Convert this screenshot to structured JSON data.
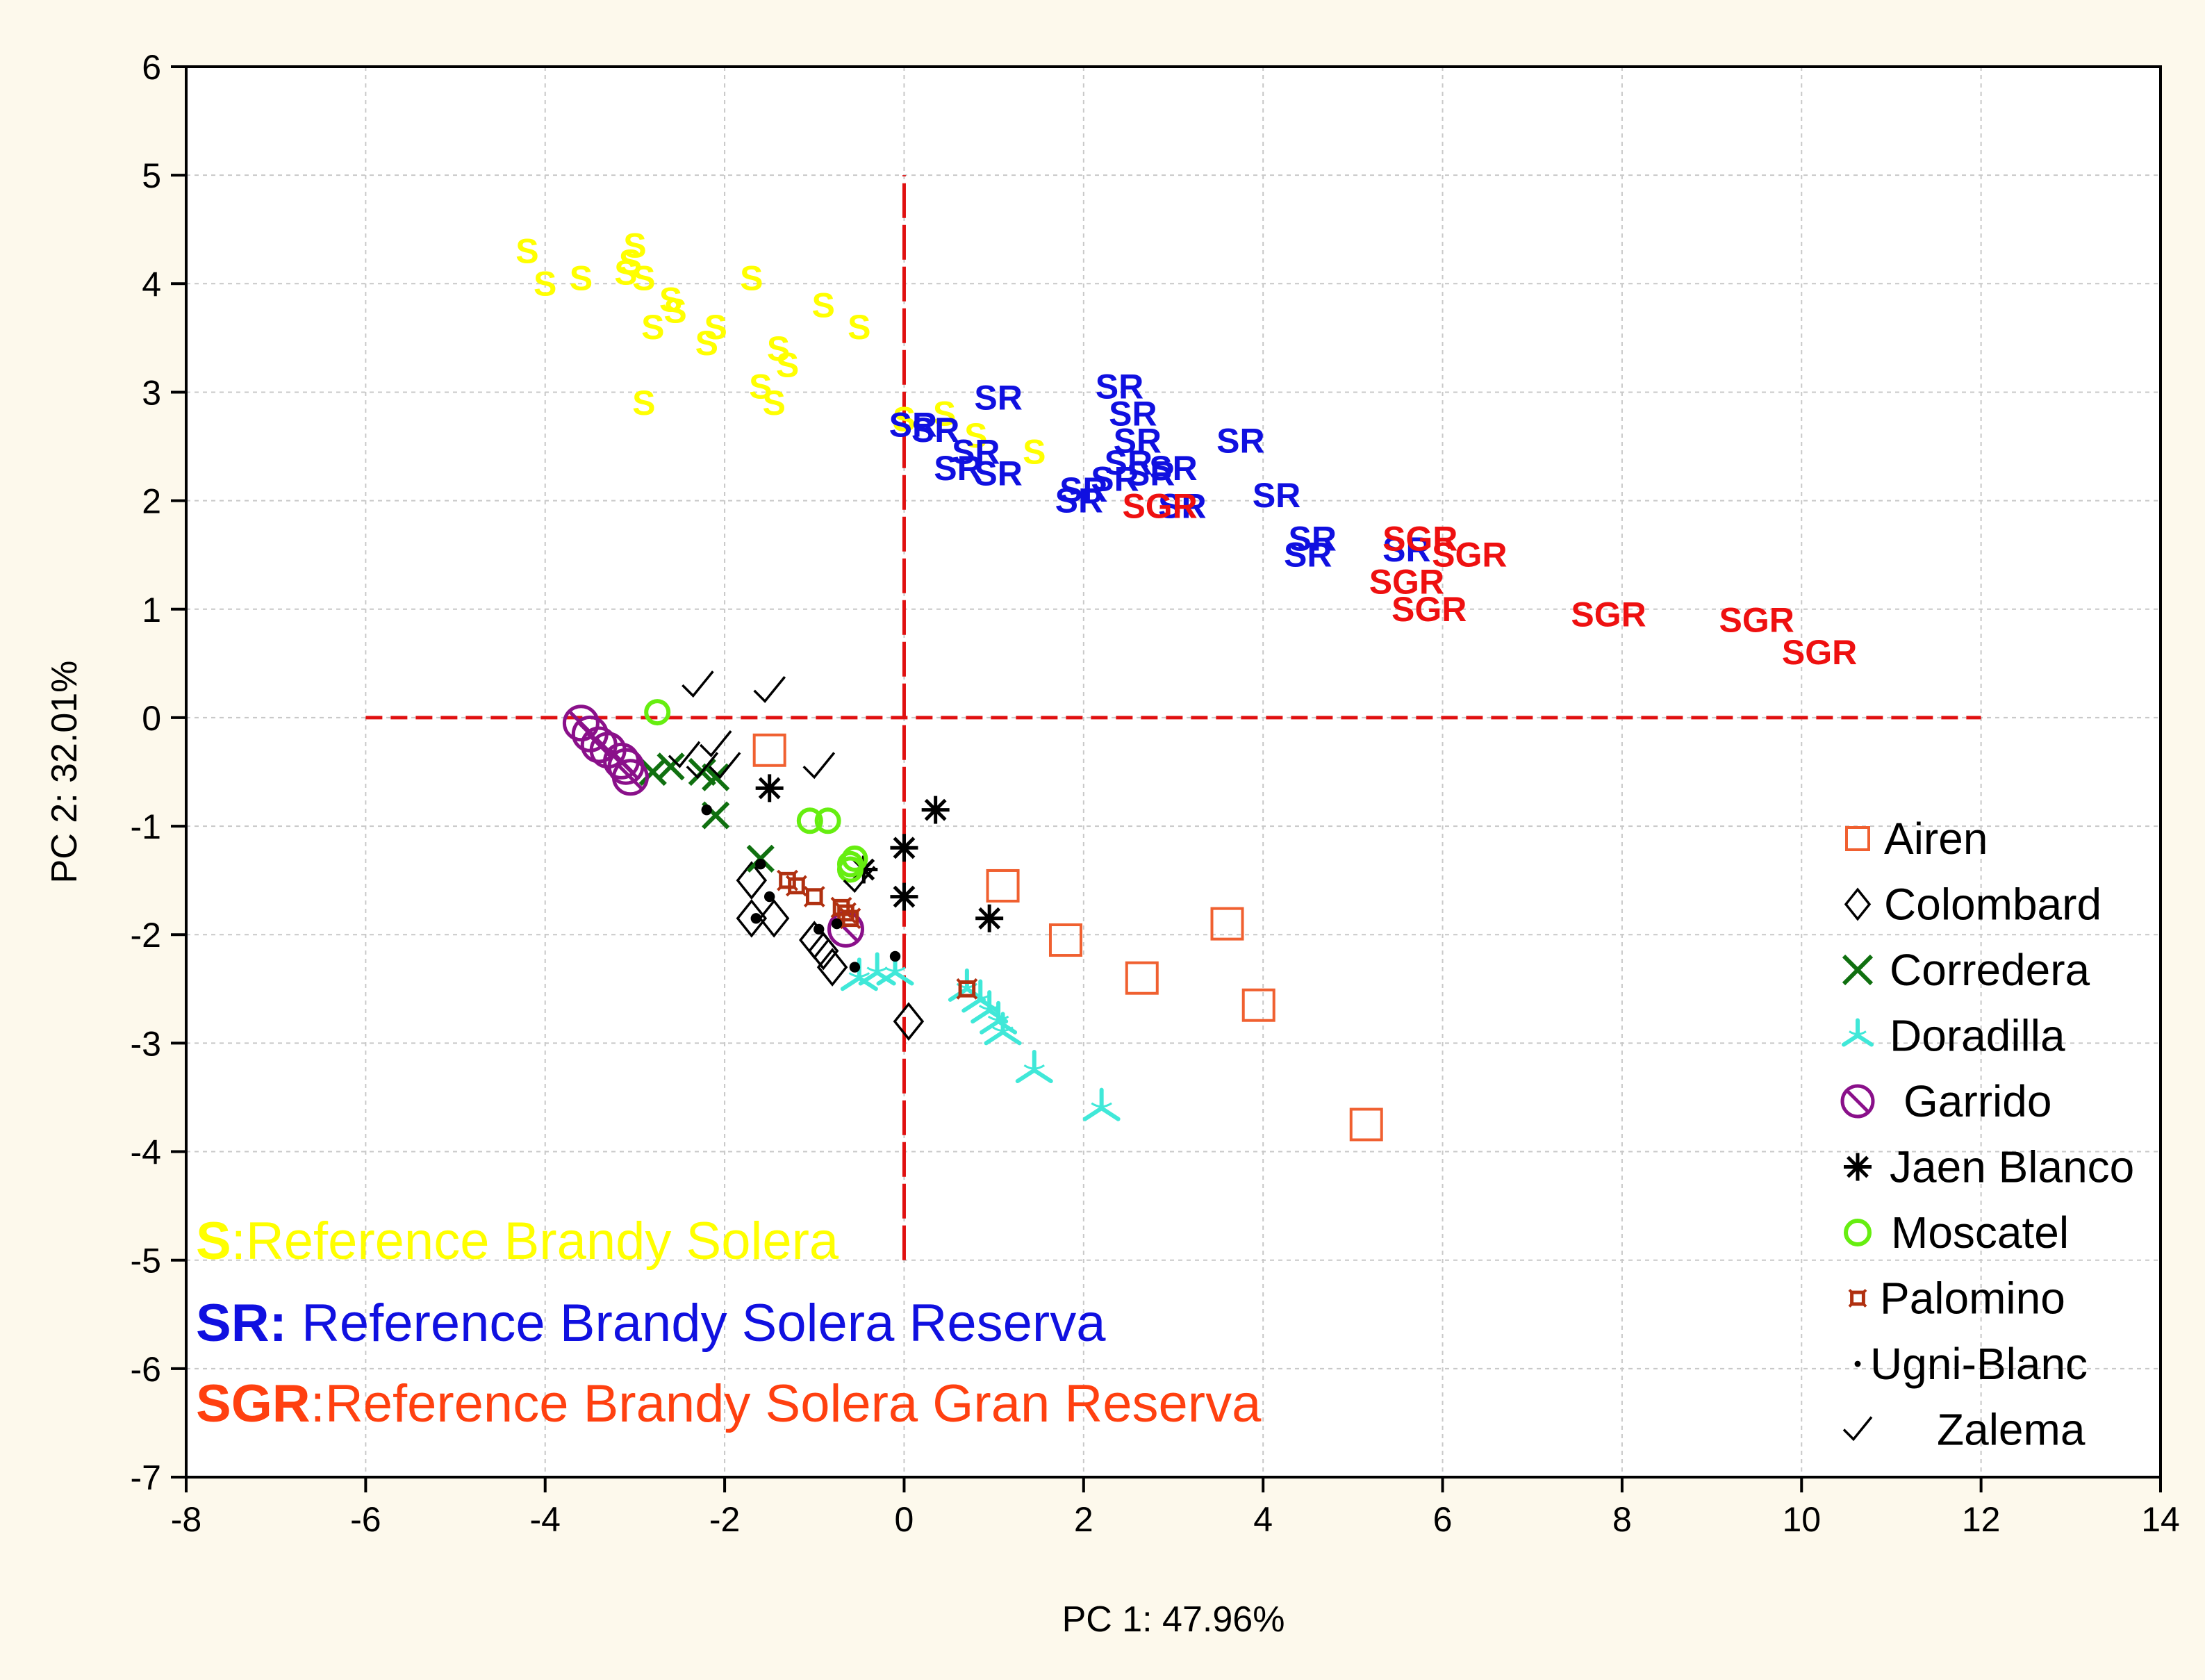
{
  "chart_data": {
    "type": "scatter",
    "title": "",
    "xlabel": "PC 1: 47.96%",
    "ylabel": "PC 2: 32.01%",
    "xlim": [
      -8,
      14
    ],
    "ylim": [
      -7,
      6
    ],
    "grid": true,
    "xticks": [
      -8,
      -6,
      -4,
      -2,
      0,
      2,
      4,
      6,
      8,
      10,
      12,
      14
    ],
    "yticks": [
      -7,
      -6,
      -5,
      -4,
      -3,
      -2,
      -1,
      0,
      1,
      2,
      3,
      4,
      5,
      6
    ],
    "colors": {
      "background": "#fdf9ec",
      "plot_bg": "#ffffff",
      "axes": "#000000",
      "grid": "#c8c8c8",
      "zero_lines": "#e01010",
      "S": "#ffff00",
      "SR": "#1010e0",
      "SGR": "#ee1010",
      "SGR_note": "#ff4010",
      "Airen": "#f06030",
      "Colombard": "#000000",
      "Corredera": "#107010",
      "Doradilla": "#40e8d8",
      "Garrido": "#8a108a",
      "Jaen Blanco": "#000000",
      "Moscatel": "#66ee10",
      "Palomino": "#b03010",
      "Ugni-Blanc": "#000000",
      "Zalema": "#000000"
    },
    "reference_lines": {
      "horizontal": {
        "y": 0,
        "x_from": -6,
        "x_to": 12
      },
      "vertical": {
        "x": 0,
        "y_from": -5,
        "y_to": 5
      }
    },
    "annotations": [
      {
        "key": "S",
        "key_color": "S",
        "text": ":Reference Brandy Solera",
        "text_color": "S"
      },
      {
        "key": "SR:",
        "key_color": "SR",
        "text": " Reference Brandy Solera Reserva",
        "text_color": "SR"
      },
      {
        "key": "SGR",
        "key_color": "SGR_note",
        "text": ":Reference Brandy Solera Gran Reserva",
        "text_color": "SGR_note"
      }
    ],
    "legend": {
      "position": "bottom-right",
      "entries": [
        "Airen",
        "Colombard",
        "Corredera",
        "Doradilla",
        "Garrido",
        "Jaen Blanco",
        "Moscatel",
        "Palomino",
        "Ugni-Blanc",
        "Zalema"
      ]
    },
    "series": [
      {
        "name": "S",
        "marker": "text",
        "label": "S",
        "points": [
          [
            -4.2,
            4.3
          ],
          [
            -4.0,
            4.0
          ],
          [
            -3.6,
            4.05
          ],
          [
            -3.0,
            4.35
          ],
          [
            -3.05,
            4.2
          ],
          [
            -3.1,
            4.1
          ],
          [
            -2.9,
            4.05
          ],
          [
            -2.6,
            3.85
          ],
          [
            -2.55,
            3.75
          ],
          [
            -2.8,
            3.6
          ],
          [
            -2.1,
            3.6
          ],
          [
            -2.2,
            3.45
          ],
          [
            -1.7,
            4.05
          ],
          [
            -1.4,
            3.4
          ],
          [
            -1.3,
            3.25
          ],
          [
            -1.6,
            3.05
          ],
          [
            -1.45,
            2.9
          ],
          [
            -2.9,
            2.9
          ],
          [
            -0.9,
            3.8
          ],
          [
            -0.5,
            3.6
          ],
          [
            0.0,
            2.75
          ],
          [
            0.45,
            2.8
          ],
          [
            0.8,
            2.6
          ],
          [
            1.45,
            2.45
          ]
        ]
      },
      {
        "name": "SR",
        "marker": "text",
        "label": "SR",
        "points": [
          [
            0.1,
            2.7
          ],
          [
            0.35,
            2.65
          ],
          [
            0.8,
            2.45
          ],
          [
            0.6,
            2.3
          ],
          [
            1.05,
            2.25
          ],
          [
            1.05,
            2.95
          ],
          [
            2.4,
            3.05
          ],
          [
            2.55,
            2.8
          ],
          [
            2.6,
            2.55
          ],
          [
            2.5,
            2.35
          ],
          [
            2.35,
            2.2
          ],
          [
            2.75,
            2.25
          ],
          [
            3.0,
            2.3
          ],
          [
            2.0,
            2.1
          ],
          [
            1.95,
            2.0
          ],
          [
            3.1,
            1.95
          ],
          [
            3.75,
            2.55
          ],
          [
            4.15,
            2.05
          ],
          [
            4.55,
            1.65
          ],
          [
            4.5,
            1.5
          ],
          [
            5.6,
            1.55
          ]
        ]
      },
      {
        "name": "SGR",
        "marker": "text",
        "label": "SGR",
        "points": [
          [
            2.85,
            1.95
          ],
          [
            5.75,
            1.65
          ],
          [
            6.3,
            1.5
          ],
          [
            5.6,
            1.25
          ],
          [
            5.85,
            1.0
          ],
          [
            7.85,
            0.95
          ],
          [
            9.5,
            0.9
          ],
          [
            10.2,
            0.6
          ]
        ]
      },
      {
        "name": "Airen",
        "marker": "square",
        "points": [
          [
            -1.5,
            -0.3
          ],
          [
            1.1,
            -1.55
          ],
          [
            1.8,
            -2.05
          ],
          [
            2.65,
            -2.4
          ],
          [
            3.6,
            -1.9
          ],
          [
            3.95,
            -2.65
          ],
          [
            5.15,
            -3.75
          ]
        ]
      },
      {
        "name": "Colombard",
        "marker": "diamond",
        "points": [
          [
            -1.7,
            -1.5
          ],
          [
            -1.7,
            -1.85
          ],
          [
            -1.45,
            -1.85
          ],
          [
            -1.0,
            -2.05
          ],
          [
            -0.9,
            -2.15
          ],
          [
            -0.8,
            -2.3
          ],
          [
            0.05,
            -2.8
          ]
        ]
      },
      {
        "name": "Corredera",
        "marker": "x",
        "points": [
          [
            -2.8,
            -0.5
          ],
          [
            -2.6,
            -0.45
          ],
          [
            -2.25,
            -0.5
          ],
          [
            -2.1,
            -0.55
          ],
          [
            -2.1,
            -0.9
          ],
          [
            -1.6,
            -1.3
          ]
        ]
      },
      {
        "name": "Doradilla",
        "marker": "tri",
        "points": [
          [
            -0.5,
            -2.4
          ],
          [
            -0.3,
            -2.35
          ],
          [
            -0.1,
            -2.35
          ],
          [
            0.7,
            -2.5
          ],
          [
            0.85,
            -2.6
          ],
          [
            0.95,
            -2.7
          ],
          [
            1.05,
            -2.8
          ],
          [
            1.1,
            -2.9
          ],
          [
            1.45,
            -3.25
          ],
          [
            2.2,
            -3.6
          ]
        ]
      },
      {
        "name": "Garrido",
        "marker": "circle-slash",
        "points": [
          [
            -3.6,
            -0.05
          ],
          [
            -3.5,
            -0.15
          ],
          [
            -3.4,
            -0.25
          ],
          [
            -3.3,
            -0.3
          ],
          [
            -3.15,
            -0.4
          ],
          [
            -3.1,
            -0.45
          ],
          [
            -3.05,
            -0.55
          ],
          [
            -0.65,
            -1.95
          ]
        ]
      },
      {
        "name": "Jaen Blanco",
        "marker": "star",
        "points": [
          [
            -1.5,
            -0.65
          ],
          [
            0.35,
            -0.85
          ],
          [
            0.0,
            -1.2
          ],
          [
            -0.45,
            -1.4
          ],
          [
            0.0,
            -1.65
          ],
          [
            0.95,
            -1.85
          ]
        ]
      },
      {
        "name": "Moscatel",
        "marker": "circle",
        "points": [
          [
            -2.75,
            0.05
          ],
          [
            -1.05,
            -0.95
          ],
          [
            -0.85,
            -0.95
          ],
          [
            -0.55,
            -1.3
          ],
          [
            -0.6,
            -1.35
          ],
          [
            -0.6,
            -1.4
          ]
        ]
      },
      {
        "name": "Palomino",
        "marker": "palomino",
        "points": [
          [
            -1.3,
            -1.5
          ],
          [
            -1.2,
            -1.55
          ],
          [
            -1.0,
            -1.65
          ],
          [
            -0.7,
            -1.75
          ],
          [
            -0.65,
            -1.8
          ],
          [
            -0.6,
            -1.85
          ],
          [
            0.7,
            -2.5
          ]
        ]
      },
      {
        "name": "Ugni-Blanc",
        "marker": "dot",
        "points": [
          [
            -2.2,
            -0.85
          ],
          [
            -1.6,
            -1.35
          ],
          [
            -1.5,
            -1.65
          ],
          [
            -1.65,
            -1.85
          ],
          [
            -0.95,
            -1.95
          ],
          [
            -0.75,
            -1.9
          ],
          [
            -0.55,
            -2.3
          ],
          [
            -0.1,
            -2.2
          ]
        ]
      },
      {
        "name": "Zalema",
        "marker": "check",
        "points": [
          [
            -2.3,
            0.3
          ],
          [
            -1.5,
            0.25
          ],
          [
            -2.1,
            -0.25
          ],
          [
            -2.45,
            -0.35
          ],
          [
            -2.25,
            -0.45
          ],
          [
            -2.0,
            -0.45
          ],
          [
            -0.95,
            -0.45
          ],
          [
            -0.5,
            -1.5
          ]
        ]
      }
    ]
  }
}
